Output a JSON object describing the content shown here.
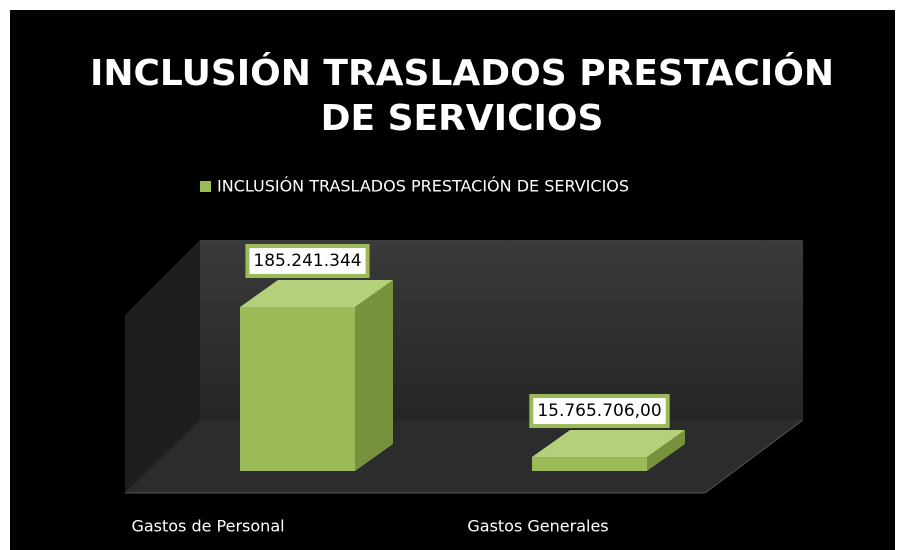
{
  "chart_data": {
    "type": "bar",
    "title": [
      "INCLUSIÓN TRASLADOS PRESTACIÓN",
      "DE SERVICIOS"
    ],
    "categories": [
      "Gastos de Personal",
      "Gastos Generales"
    ],
    "series": [
      {
        "name": "INCLUSIÓN TRASLADOS PRESTACIÓN DE SERVICIOS",
        "color": "#9bbb59",
        "values": [
          185241344,
          15765706
        ],
        "value_labels": [
          "185.241.344",
          "15.765.706,00"
        ]
      }
    ],
    "legend": "top"
  }
}
